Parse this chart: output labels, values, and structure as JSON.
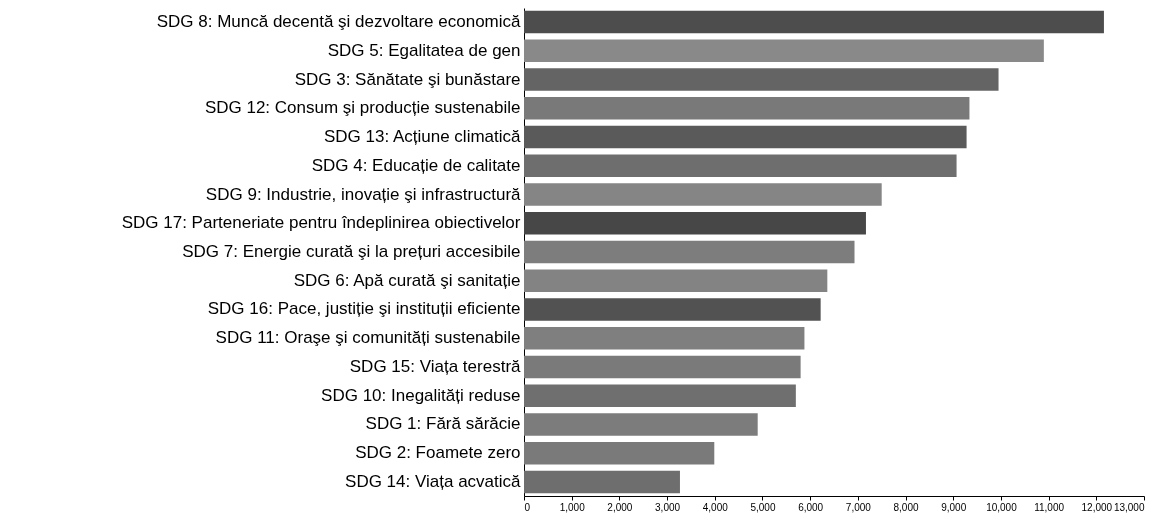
{
  "chart_data": {
    "type": "bar",
    "orientation": "horizontal",
    "categories": [
      "SDG 8: Muncă decentă şi dezvoltare economică",
      "SDG 5: Egalitatea de gen",
      "SDG 3: Sănătate şi bunăstare",
      "SDG 12: Consum şi producție sustenabile",
      "SDG 13: Acțiune climatică",
      "SDG 4: Educație de calitate",
      "SDG 9: Industrie, inovație şi infrastructură",
      "SDG 17: Parteneriate pentru îndeplinirea obiectivelor",
      "SDG 7: Energie curată şi la prețuri accesibile",
      "SDG 6: Apă curată şi sanitație",
      "SDG 16: Pace, justiție şi instituții eficiente",
      "SDG 11: Oraşe şi comunități sustenabile",
      "SDG  15: Viața terestră",
      "SDG 10: Inegalități reduse",
      "SDG 1: Fără sărăcie",
      "SDG 2: Foamete zero",
      "SDG 14: Viața acvatică"
    ],
    "values": [
      12160,
      10900,
      9950,
      9340,
      9280,
      9070,
      7500,
      7170,
      6930,
      6360,
      6220,
      5880,
      5800,
      5700,
      4900,
      3990,
      3270
    ],
    "colors": [
      "#4d4d4d",
      "#898989",
      "#646464",
      "#797979",
      "#5a5a5a",
      "#6e6e6e",
      "#858585",
      "#474747",
      "#7d7d7d",
      "#838383",
      "#525252",
      "#7f7f7f",
      "#7a7a7a",
      "#6f6f6f",
      "#7c7c7c",
      "#7a7a7a",
      "#6e6e6e"
    ],
    "xlim": [
      0,
      13000
    ],
    "xticks": [
      0,
      {
        "value": 1000,
        "label": "1,000"
      },
      {
        "value": 2000,
        "label": "2,000"
      },
      {
        "value": 3000,
        "label": "3,000"
      },
      {
        "value": 4000,
        "label": "4,000"
      },
      {
        "value": 5000,
        "label": "5,000"
      },
      {
        "value": 6000,
        "label": "6,000"
      },
      {
        "value": 7000,
        "label": "7,000"
      },
      {
        "value": 8000,
        "label": "8,000"
      },
      {
        "value": 9000,
        "label": "9,000"
      },
      {
        "value": 10000,
        "label": "10,000"
      },
      {
        "value": 11000,
        "label": "11,000"
      },
      {
        "value": 12000,
        "label": "12,000"
      },
      {
        "value": 13000,
        "label": "13,000"
      }
    ],
    "grid": false
  }
}
